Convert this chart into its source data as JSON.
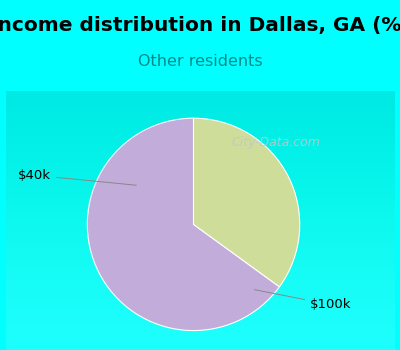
{
  "title": "Income distribution in Dallas, GA (%)",
  "subtitle": "Other residents",
  "title_fontsize": 14.5,
  "subtitle_fontsize": 11.5,
  "title_color": "#000000",
  "subtitle_color": "#008B8B",
  "bg_top_color": "#00FFFF",
  "chart_bg_color": "#FFFFFF",
  "slices": [
    {
      "label": "$100k",
      "value": 65,
      "color": "#C2ADDA"
    },
    {
      "label": "$40k",
      "value": 35,
      "color": "#CEDD9A"
    }
  ],
  "startangle": 90,
  "label_fontsize": 9.5,
  "watermark": "City-Data.com",
  "watermark_color": "#C0C8C8",
  "watermark_alpha": 0.85
}
